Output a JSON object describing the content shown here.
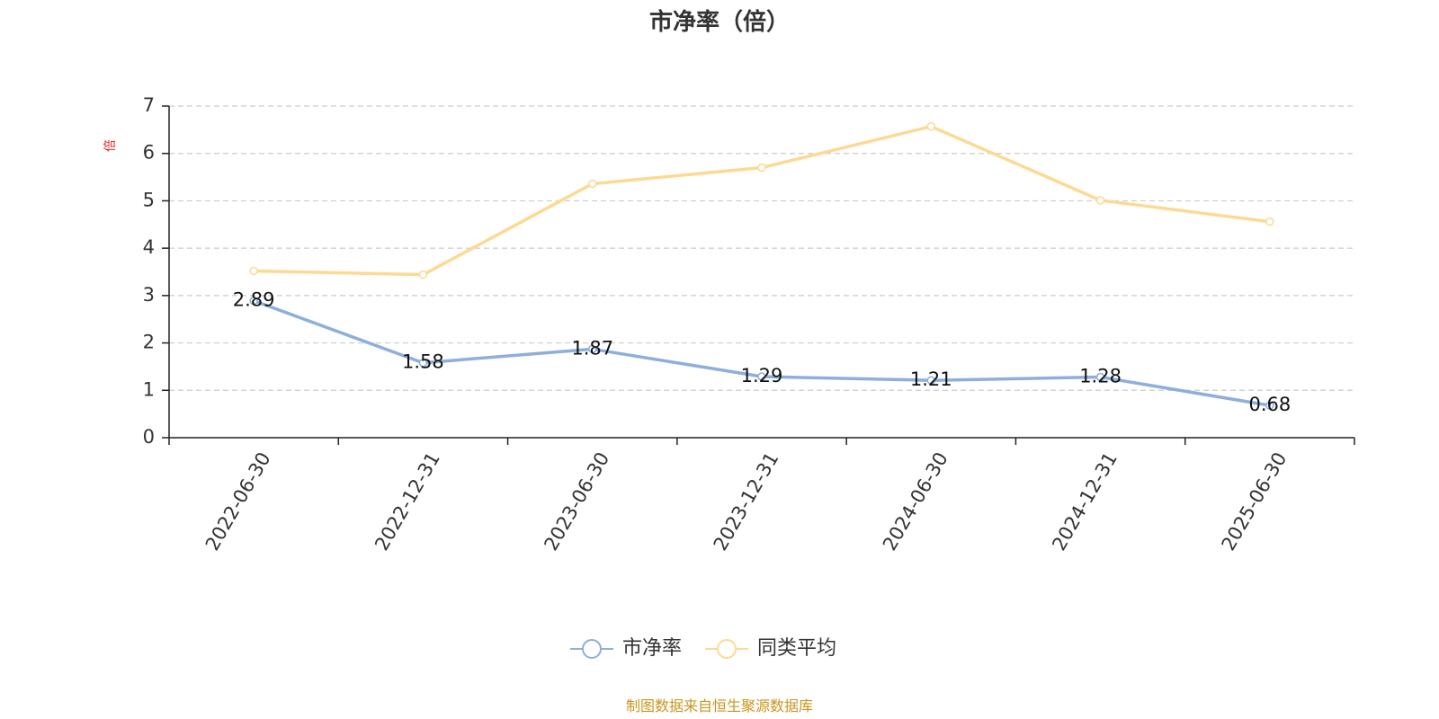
{
  "chart_data": {
    "type": "line",
    "title": "市净率（倍）",
    "ylabel": "倍",
    "ylim": [
      0,
      7
    ],
    "yticks": [
      0,
      1,
      2,
      3,
      4,
      5,
      6,
      7
    ],
    "categories": [
      "2022-06-30",
      "2022-12-31",
      "2023-06-30",
      "2023-12-31",
      "2024-06-30",
      "2024-12-31",
      "2025-06-30"
    ],
    "series": [
      {
        "name": "市净率",
        "values": [
          2.89,
          1.58,
          1.87,
          1.29,
          1.21,
          1.28,
          0.68
        ],
        "data_labels": [
          "2.89",
          "1.58",
          "1.87",
          "1.29",
          "1.21",
          "1.28",
          "0.68"
        ],
        "color": "#8eaedb"
      },
      {
        "name": "同类平均",
        "values": [
          3.52,
          3.44,
          5.36,
          5.7,
          6.57,
          5.01,
          4.56
        ],
        "color": "#fdd993"
      }
    ],
    "grid": true,
    "legend_position": "bottom-center"
  },
  "source_note": "制图数据来自恒生聚源数据库",
  "colors": {
    "axis": "#222222",
    "grid": "#cccccc",
    "ylabel": "#e02020",
    "source": "#c8961e"
  }
}
